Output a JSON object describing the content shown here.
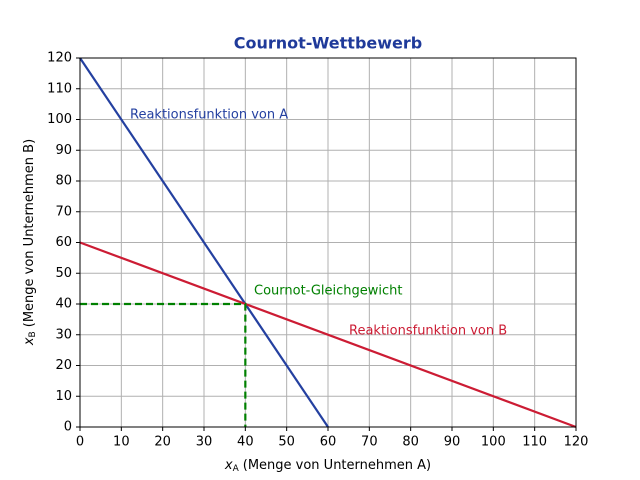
{
  "chart_data": {
    "type": "line",
    "title": "Cournot-Wettbewerb",
    "xlabel_symbol": "x",
    "xlabel_subscript": "A",
    "xlabel_text": "(Menge von Unternehmen A)",
    "ylabel_symbol": "x",
    "ylabel_subscript": "B",
    "ylabel_text": "(Menge von Unternehmen B)",
    "xlim": [
      0,
      120
    ],
    "ylim": [
      0,
      120
    ],
    "xticks": [
      0,
      10,
      20,
      30,
      40,
      50,
      60,
      70,
      80,
      90,
      100,
      110,
      120
    ],
    "yticks": [
      0,
      10,
      20,
      30,
      40,
      50,
      60,
      70,
      80,
      90,
      100,
      110,
      120
    ],
    "grid": true,
    "series": [
      {
        "name": "Reaktionsfunktion von A",
        "color": "#2440a0",
        "x": [
          0,
          60
        ],
        "values": [
          120,
          0
        ]
      },
      {
        "name": "Reaktionsfunktion von B",
        "color": "#cc1c34",
        "x": [
          0,
          120
        ],
        "values": [
          60,
          0
        ]
      },
      {
        "color": "#008000",
        "dashed": true,
        "x": [
          0,
          40,
          40
        ],
        "values": [
          40,
          40,
          0
        ]
      }
    ],
    "annotations": [
      "Cournot-Gleichgewicht"
    ]
  }
}
